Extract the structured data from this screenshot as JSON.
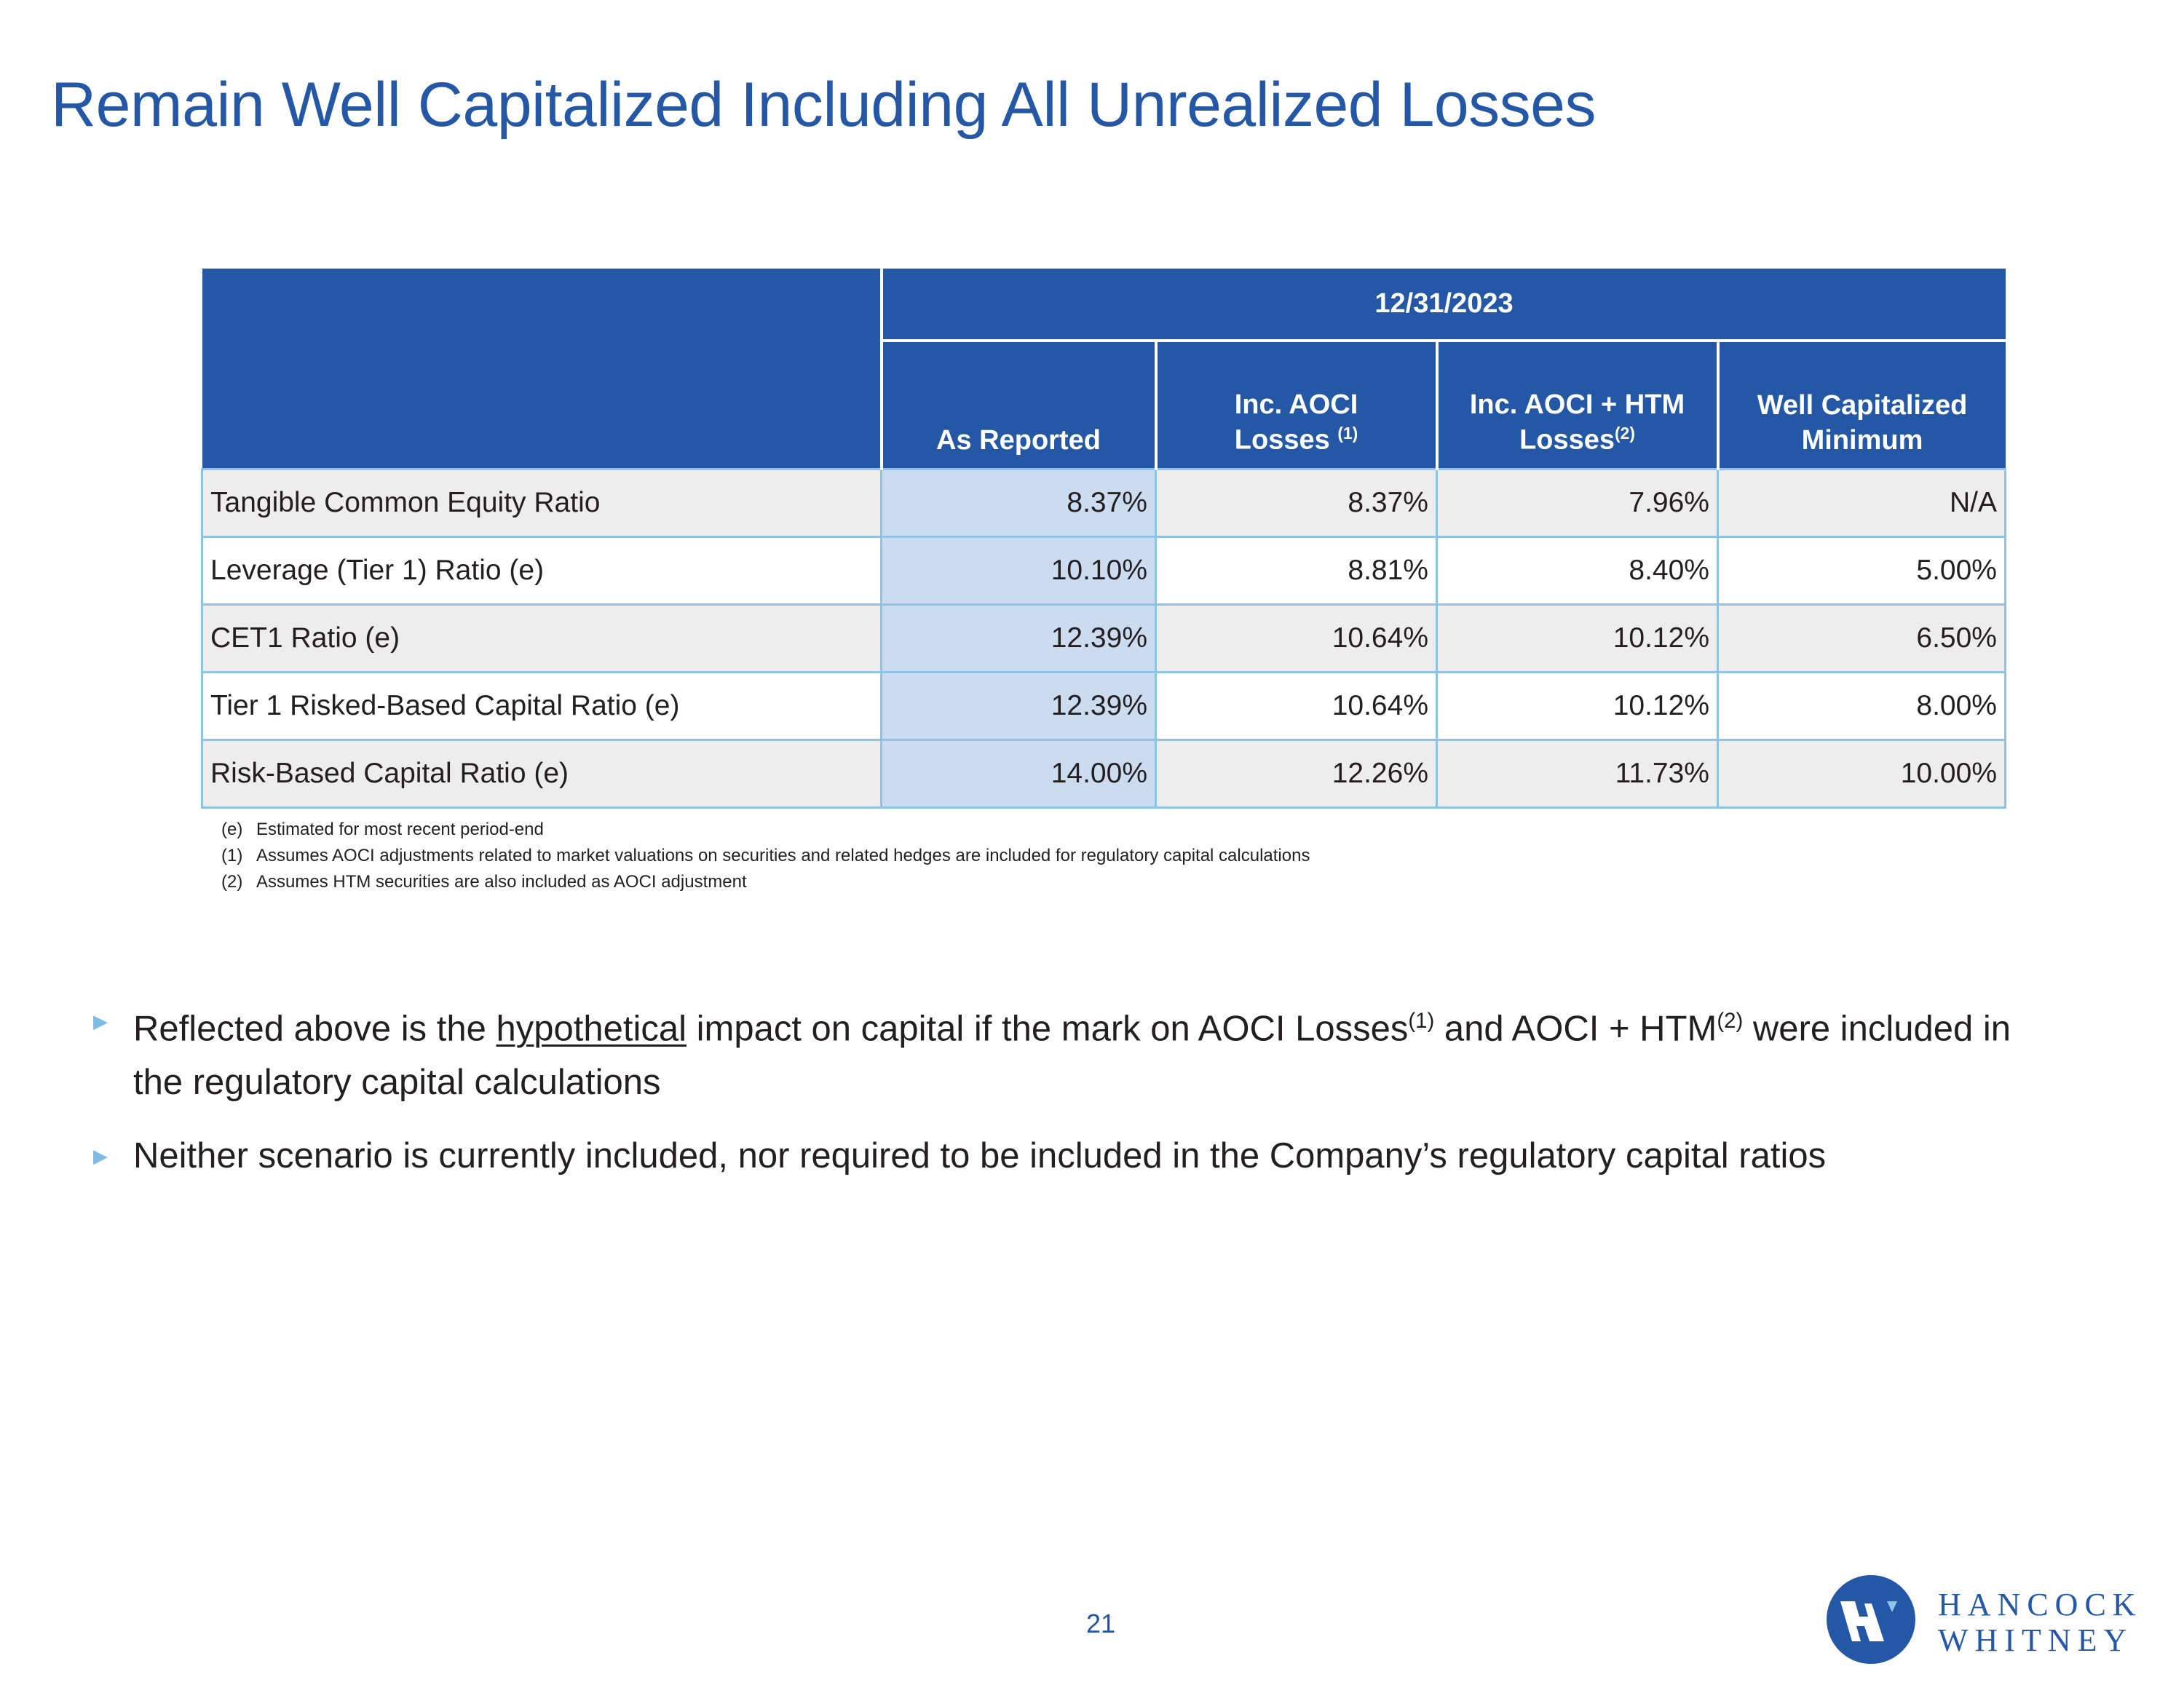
{
  "title": "Remain Well Capitalized Including All Unrealized Losses",
  "table": {
    "period": "12/31/2023",
    "columns": [
      {
        "label": "As Reported",
        "sup": ""
      },
      {
        "label_line1": "Inc. AOCI",
        "label_line2": "Losses",
        "sup": "(1)"
      },
      {
        "label_line1": "Inc. AOCI + HTM",
        "label_line2": "Losses",
        "sup": "(2)"
      },
      {
        "label_line1": "Well Capitalized",
        "label_line2": "Minimum",
        "sup": ""
      }
    ],
    "rows": [
      {
        "label": "Tangible Common Equity Ratio",
        "values": [
          "8.37%",
          "8.37%",
          "7.96%",
          "N/A"
        ]
      },
      {
        "label": "Leverage (Tier 1) Ratio (e)",
        "values": [
          "10.10%",
          "8.81%",
          "8.40%",
          "5.00%"
        ]
      },
      {
        "label": "CET1 Ratio (e)",
        "values": [
          "12.39%",
          "10.64%",
          "10.12%",
          "6.50%"
        ]
      },
      {
        "label": "Tier 1 Risked-Based Capital Ratio (e)",
        "values": [
          "12.39%",
          "10.64%",
          "10.12%",
          "8.00%"
        ]
      },
      {
        "label": "Risk-Based Capital Ratio (e)",
        "values": [
          "14.00%",
          "12.26%",
          "11.73%",
          "10.00%"
        ]
      }
    ]
  },
  "footnotes": [
    {
      "key": "(e)",
      "text": "Estimated for most recent period-end"
    },
    {
      "key": "(1)",
      "text": "Assumes AOCI adjustments related to market valuations on securities and related hedges are included for regulatory capital calculations"
    },
    {
      "key": "(2)",
      "text": "Assumes HTM securities are also included as AOCI adjustment"
    }
  ],
  "bullets": {
    "b1": {
      "pre": "Reflected above is the ",
      "underlined": "hypothetical",
      "mid": " impact on capital if the mark on AOCI Losses",
      "sup1": "(1)",
      "mid2": " and AOCI + HTM",
      "sup2": "(2)",
      "post": " were included in the regulatory capital calculations"
    },
    "b2": {
      "text": "Neither scenario is currently included, nor required to be included in the Company’s regulatory capital ratios"
    }
  },
  "page_number": "21",
  "logo": {
    "line1": "HANCOCK",
    "line2": "WHITNEY"
  },
  "colors": {
    "brand_blue": "#2458a6",
    "as_reported_fill": "#cbdcf1",
    "row_shade": "#ededed",
    "bullet_marker": "#7fbbe4"
  }
}
